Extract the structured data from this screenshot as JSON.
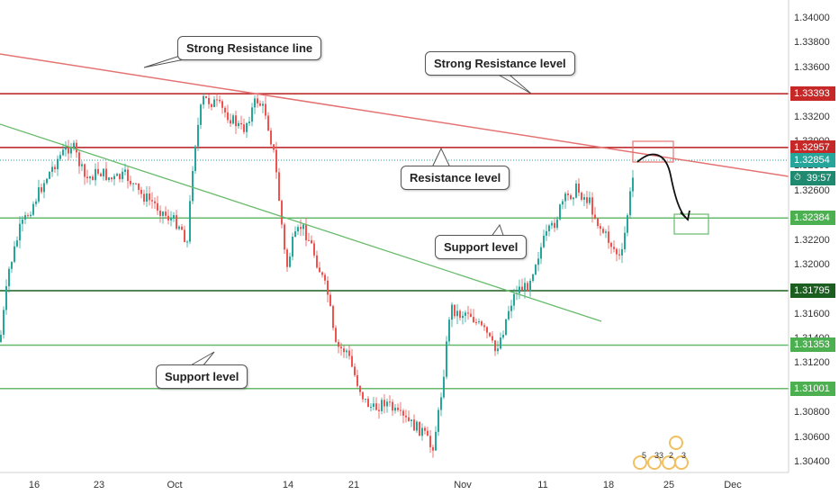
{
  "chart_data": {
    "type": "candlestick",
    "y_axis": {
      "ticks": [
        "1.34000",
        "1.33800",
        "1.33600",
        "1.33400",
        "1.33200",
        "1.33000",
        "1.32800",
        "1.32600",
        "1.32400",
        "1.32200",
        "1.32000",
        "1.31800",
        "1.31600",
        "1.31400",
        "1.31200",
        "1.31000",
        "1.30800",
        "1.30600",
        "1.30400"
      ],
      "range": [
        1.3037,
        1.3413
      ]
    },
    "x_axis": {
      "ticks": [
        "16",
        "23",
        "Oct",
        "14",
        "21",
        "Nov",
        "11",
        "18",
        "25",
        "Dec"
      ]
    },
    "price_tags": [
      {
        "id": "res-strong",
        "value": "1.33393",
        "color": "#c62828"
      },
      {
        "id": "res",
        "value": "1.32957",
        "color": "#c62828"
      },
      {
        "id": "last",
        "value": "1.32854",
        "color": "#26a69a"
      },
      {
        "id": "sup1",
        "value": "1.32384",
        "color": "#4caf50"
      },
      {
        "id": "sup2",
        "value": "1.31795",
        "color": "#1b5e20"
      },
      {
        "id": "sup3",
        "value": "1.31353",
        "color": "#4caf50"
      },
      {
        "id": "sup4",
        "value": "1.31001",
        "color": "#4caf50"
      }
    ],
    "countdown": "39:57",
    "horizontal_levels": [
      {
        "value": 1.33393,
        "color": "#b71c1c"
      },
      {
        "value": 1.32957,
        "color": "#b71c1c"
      },
      {
        "value": 1.32384,
        "color": "#66bb6a"
      },
      {
        "value": 1.31795,
        "color": "#1b5e20"
      },
      {
        "value": 1.31353,
        "color": "#66bb6a"
      },
      {
        "value": 1.31001,
        "color": "#66bb6a"
      }
    ],
    "annotations": {
      "strong_resistance_line": "Strong Resistance line",
      "strong_resistance_level": "Strong Resistance level",
      "resistance_level": "Resistance level",
      "support_level_1": "Support level",
      "support_level_2": "Support level"
    },
    "events": {
      "count_a": "5",
      "count_b": "33",
      "count_c": "2",
      "count_d": "3"
    },
    "colors": {
      "up": "#26a69a",
      "down": "#ef5350",
      "resistance_line": "#e57373",
      "support_line": "#66bb6a"
    }
  }
}
